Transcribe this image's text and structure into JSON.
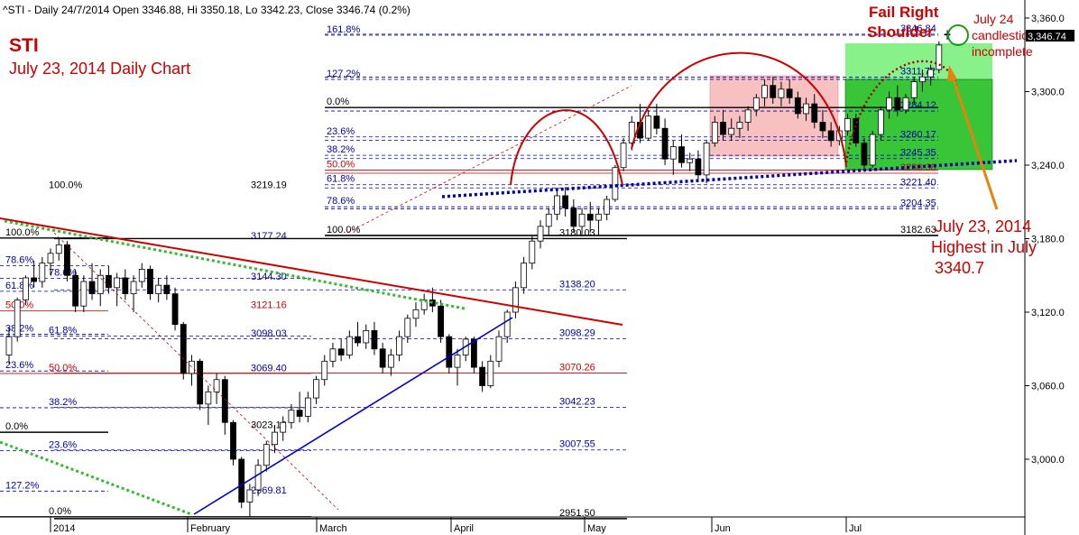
{
  "window": {
    "header_text": "^STI - Daily 24/7/2014 Open 3346.88, Hi 3350.18, Lo 3342.23, Close 3346.74 (0.2%)"
  },
  "annotations": {
    "title": "STI",
    "subtitle": "July 23, 2014 Daily Chart",
    "fail_right_line1": "Fail Right",
    "fail_right_line2": "Shoulder",
    "july24_line1": "July 24",
    "july24_line2": "candlestick",
    "july24_line3": "incomplete",
    "highest_line1": "July 23, 2014",
    "highest_line2": "Highest in July",
    "highest_line3": "3340.7",
    "last_price_badge": "3,346.74"
  },
  "colors": {
    "bull_candle": "#ffffff",
    "bear_candle": "#000000",
    "trend_red": "#cc0000",
    "trend_blue": "#0000cc",
    "trend_green_dotted": "#33bb33",
    "neckline_dotted": "#0000aa",
    "annotation_red": "#cc0000",
    "arrow_orange": "#e8820a",
    "box_pink": "#f6b7b7",
    "box_lightgreen": "#7cf07c",
    "box_green": "#2ec42e"
  },
  "chart_data": {
    "type": "candlestick",
    "title": "STI",
    "subtitle": "July 23, 2014 Daily Chart",
    "ylim": [
      2950,
      3370
    ],
    "y_ticks": [
      {
        "value": 3000,
        "label": "3,000.0"
      },
      {
        "value": 3060,
        "label": "3,060.0"
      },
      {
        "value": 3120,
        "label": "3,120.0"
      },
      {
        "value": 3180,
        "label": "3,180.0"
      },
      {
        "value": 3240,
        "label": "3,240.0"
      },
      {
        "value": 3300,
        "label": "3,300.0"
      },
      {
        "value": 3360,
        "label": "3,360.0"
      }
    ],
    "x_ticks": [
      "2014",
      "February",
      "March",
      "April",
      "May",
      "Jun",
      "Jul"
    ],
    "candles": [
      {
        "o": 3085,
        "h": 3108,
        "l": 3078,
        "c": 3100
      },
      {
        "o": 3100,
        "h": 3132,
        "l": 3096,
        "c": 3130
      },
      {
        "o": 3130,
        "h": 3150,
        "l": 3126,
        "c": 3148
      },
      {
        "o": 3148,
        "h": 3162,
        "l": 3140,
        "c": 3145
      },
      {
        "o": 3145,
        "h": 3165,
        "l": 3140,
        "c": 3160
      },
      {
        "o": 3160,
        "h": 3172,
        "l": 3150,
        "c": 3168
      },
      {
        "o": 3168,
        "h": 3180,
        "l": 3162,
        "c": 3175
      },
      {
        "o": 3175,
        "h": 3178,
        "l": 3145,
        "c": 3150
      },
      {
        "o": 3150,
        "h": 3155,
        "l": 3120,
        "c": 3125
      },
      {
        "o": 3125,
        "h": 3150,
        "l": 3120,
        "c": 3145
      },
      {
        "o": 3145,
        "h": 3160,
        "l": 3130,
        "c": 3135
      },
      {
        "o": 3135,
        "h": 3155,
        "l": 3125,
        "c": 3150
      },
      {
        "o": 3150,
        "h": 3158,
        "l": 3135,
        "c": 3140
      },
      {
        "o": 3140,
        "h": 3152,
        "l": 3125,
        "c": 3148
      },
      {
        "o": 3148,
        "h": 3155,
        "l": 3130,
        "c": 3135
      },
      {
        "o": 3135,
        "h": 3150,
        "l": 3120,
        "c": 3145
      },
      {
        "o": 3145,
        "h": 3160,
        "l": 3140,
        "c": 3155
      },
      {
        "o": 3155,
        "h": 3158,
        "l": 3130,
        "c": 3135
      },
      {
        "o": 3135,
        "h": 3148,
        "l": 3128,
        "c": 3142
      },
      {
        "o": 3142,
        "h": 3150,
        "l": 3130,
        "c": 3135
      },
      {
        "o": 3135,
        "h": 3140,
        "l": 3105,
        "c": 3110
      },
      {
        "o": 3110,
        "h": 3112,
        "l": 3065,
        "c": 3070
      },
      {
        "o": 3070,
        "h": 3085,
        "l": 3060,
        "c": 3080
      },
      {
        "o": 3080,
        "h": 3082,
        "l": 3040,
        "c": 3045
      },
      {
        "o": 3045,
        "h": 3060,
        "l": 3028,
        "c": 3055
      },
      {
        "o": 3055,
        "h": 3070,
        "l": 3045,
        "c": 3065
      },
      {
        "o": 3065,
        "h": 3068,
        "l": 3020,
        "c": 3030
      },
      {
        "o": 3030,
        "h": 3032,
        "l": 2995,
        "c": 3000
      },
      {
        "o": 3000,
        "h": 3002,
        "l": 2960,
        "c": 2965
      },
      {
        "o": 2965,
        "h": 2980,
        "l": 2953,
        "c": 2975
      },
      {
        "o": 2975,
        "h": 3000,
        "l": 2970,
        "c": 2995
      },
      {
        "o": 2995,
        "h": 3015,
        "l": 2990,
        "c": 3012
      },
      {
        "o": 3012,
        "h": 3028,
        "l": 3005,
        "c": 3022
      },
      {
        "o": 3022,
        "h": 3035,
        "l": 3015,
        "c": 3030
      },
      {
        "o": 3030,
        "h": 3045,
        "l": 3025,
        "c": 3040
      },
      {
        "o": 3040,
        "h": 3055,
        "l": 3030,
        "c": 3035
      },
      {
        "o": 3035,
        "h": 3055,
        "l": 3030,
        "c": 3050
      },
      {
        "o": 3050,
        "h": 3068,
        "l": 3045,
        "c": 3065
      },
      {
        "o": 3065,
        "h": 3085,
        "l": 3060,
        "c": 3080
      },
      {
        "o": 3080,
        "h": 3095,
        "l": 3075,
        "c": 3090
      },
      {
        "o": 3090,
        "h": 3098,
        "l": 3080,
        "c": 3085
      },
      {
        "o": 3085,
        "h": 3105,
        "l": 3082,
        "c": 3100
      },
      {
        "o": 3100,
        "h": 3112,
        "l": 3092,
        "c": 3095
      },
      {
        "o": 3095,
        "h": 3110,
        "l": 3090,
        "c": 3105
      },
      {
        "o": 3105,
        "h": 3112,
        "l": 3085,
        "c": 3090
      },
      {
        "o": 3090,
        "h": 3095,
        "l": 3070,
        "c": 3075
      },
      {
        "o": 3075,
        "h": 3090,
        "l": 3068,
        "c": 3085
      },
      {
        "o": 3085,
        "h": 3105,
        "l": 3080,
        "c": 3100
      },
      {
        "o": 3100,
        "h": 3118,
        "l": 3095,
        "c": 3115
      },
      {
        "o": 3115,
        "h": 3128,
        "l": 3108,
        "c": 3122
      },
      {
        "o": 3122,
        "h": 3135,
        "l": 3118,
        "c": 3130
      },
      {
        "o": 3130,
        "h": 3140,
        "l": 3120,
        "c": 3125
      },
      {
        "o": 3125,
        "h": 3130,
        "l": 3095,
        "c": 3100
      },
      {
        "o": 3100,
        "h": 3102,
        "l": 3070,
        "c": 3075
      },
      {
        "o": 3075,
        "h": 3090,
        "l": 3060,
        "c": 3085
      },
      {
        "o": 3085,
        "h": 3100,
        "l": 3080,
        "c": 3098
      },
      {
        "o": 3098,
        "h": 3100,
        "l": 3070,
        "c": 3075
      },
      {
        "o": 3075,
        "h": 3080,
        "l": 3055,
        "c": 3060
      },
      {
        "o": 3060,
        "h": 3085,
        "l": 3058,
        "c": 3080
      },
      {
        "o": 3080,
        "h": 3105,
        "l": 3075,
        "c": 3100
      },
      {
        "o": 3100,
        "h": 3122,
        "l": 3095,
        "c": 3120
      },
      {
        "o": 3120,
        "h": 3145,
        "l": 3115,
        "c": 3140
      },
      {
        "o": 3140,
        "h": 3165,
        "l": 3135,
        "c": 3160
      },
      {
        "o": 3160,
        "h": 3182,
        "l": 3155,
        "c": 3178
      },
      {
        "o": 3178,
        "h": 3195,
        "l": 3172,
        "c": 3190
      },
      {
        "o": 3190,
        "h": 3205,
        "l": 3183,
        "c": 3200
      },
      {
        "o": 3200,
        "h": 3220,
        "l": 3195,
        "c": 3215
      },
      {
        "o": 3215,
        "h": 3222,
        "l": 3198,
        "c": 3205
      },
      {
        "o": 3205,
        "h": 3212,
        "l": 3185,
        "c": 3190
      },
      {
        "o": 3190,
        "h": 3205,
        "l": 3182,
        "c": 3200
      },
      {
        "o": 3200,
        "h": 3210,
        "l": 3185,
        "c": 3195
      },
      {
        "o": 3195,
        "h": 3205,
        "l": 3183,
        "c": 3200
      },
      {
        "o": 3200,
        "h": 3215,
        "l": 3195,
        "c": 3212
      },
      {
        "o": 3212,
        "h": 3240,
        "l": 3210,
        "c": 3238
      },
      {
        "o": 3238,
        "h": 3262,
        "l": 3235,
        "c": 3258
      },
      {
        "o": 3258,
        "h": 3280,
        "l": 3252,
        "c": 3275
      },
      {
        "o": 3275,
        "h": 3290,
        "l": 3258,
        "c": 3262
      },
      {
        "o": 3262,
        "h": 3285,
        "l": 3260,
        "c": 3280
      },
      {
        "o": 3280,
        "h": 3290,
        "l": 3265,
        "c": 3270
      },
      {
        "o": 3270,
        "h": 3278,
        "l": 3240,
        "c": 3245
      },
      {
        "o": 3245,
        "h": 3260,
        "l": 3232,
        "c": 3255
      },
      {
        "o": 3255,
        "h": 3265,
        "l": 3238,
        "c": 3242
      },
      {
        "o": 3242,
        "h": 3250,
        "l": 3235,
        "c": 3245
      },
      {
        "o": 3245,
        "h": 3252,
        "l": 3228,
        "c": 3232
      },
      {
        "o": 3232,
        "h": 3260,
        "l": 3225,
        "c": 3258
      },
      {
        "o": 3258,
        "h": 3280,
        "l": 3255,
        "c": 3275
      },
      {
        "o": 3275,
        "h": 3285,
        "l": 3260,
        "c": 3265
      },
      {
        "o": 3265,
        "h": 3278,
        "l": 3260,
        "c": 3270
      },
      {
        "o": 3270,
        "h": 3280,
        "l": 3262,
        "c": 3275
      },
      {
        "o": 3275,
        "h": 3288,
        "l": 3268,
        "c": 3285
      },
      {
        "o": 3285,
        "h": 3298,
        "l": 3280,
        "c": 3295
      },
      {
        "o": 3295,
        "h": 3310,
        "l": 3288,
        "c": 3305
      },
      {
        "o": 3305,
        "h": 3312,
        "l": 3290,
        "c": 3295
      },
      {
        "o": 3295,
        "h": 3308,
        "l": 3288,
        "c": 3302
      },
      {
        "o": 3302,
        "h": 3310,
        "l": 3290,
        "c": 3295
      },
      {
        "o": 3295,
        "h": 3300,
        "l": 3278,
        "c": 3282
      },
      {
        "o": 3282,
        "h": 3295,
        "l": 3276,
        "c": 3290
      },
      {
        "o": 3290,
        "h": 3298,
        "l": 3270,
        "c": 3275
      },
      {
        "o": 3275,
        "h": 3285,
        "l": 3262,
        "c": 3268
      },
      {
        "o": 3268,
        "h": 3275,
        "l": 3255,
        "c": 3260
      },
      {
        "o": 3260,
        "h": 3272,
        "l": 3256,
        "c": 3268
      },
      {
        "o": 3268,
        "h": 3282,
        "l": 3264,
        "c": 3278
      },
      {
        "o": 3278,
        "h": 3282,
        "l": 3255,
        "c": 3258
      },
      {
        "o": 3258,
        "h": 3262,
        "l": 3236,
        "c": 3240
      },
      {
        "o": 3240,
        "h": 3268,
        "l": 3238,
        "c": 3265
      },
      {
        "o": 3265,
        "h": 3288,
        "l": 3260,
        "c": 3285
      },
      {
        "o": 3285,
        "h": 3300,
        "l": 3278,
        "c": 3295
      },
      {
        "o": 3295,
        "h": 3305,
        "l": 3280,
        "c": 3285
      },
      {
        "o": 3285,
        "h": 3298,
        "l": 3282,
        "c": 3295
      },
      {
        "o": 3295,
        "h": 3312,
        "l": 3290,
        "c": 3308
      },
      {
        "o": 3308,
        "h": 3318,
        "l": 3300,
        "c": 3312
      },
      {
        "o": 3312,
        "h": 3322,
        "l": 3305,
        "c": 3318
      },
      {
        "o": 3318,
        "h": 3341,
        "l": 3315,
        "c": 3338
      },
      {
        "o": 3346.88,
        "h": 3350.18,
        "l": 3342.23,
        "c": 3346.74
      }
    ],
    "fib_levels": [
      {
        "set": "A",
        "label": "100.0%",
        "value": 3180.5,
        "price_text": ""
      },
      {
        "set": "A",
        "label": "78.6%",
        "value": 3158,
        "price_text": ""
      },
      {
        "set": "A",
        "label": "61.8%",
        "value": 3137,
        "price_text": ""
      },
      {
        "set": "A",
        "label": "50.0%",
        "value": 3121,
        "price_text": "",
        "red": true
      },
      {
        "set": "A",
        "label": "38.2%",
        "value": 3102,
        "price_text": ""
      },
      {
        "set": "A",
        "label": "23.6%",
        "value": 3072,
        "price_text": ""
      },
      {
        "set": "A",
        "label": "0.0%",
        "value": 3022,
        "price_text": ""
      },
      {
        "set": "A",
        "label": "127.2%",
        "value": 2974,
        "price_text": ""
      },
      {
        "set": "B",
        "label": "100.0%",
        "value": 3219.19,
        "price_text": "3219.19"
      },
      {
        "set": "B",
        "label": "",
        "value": 3177.24,
        "price_text": "3177.24"
      },
      {
        "set": "B",
        "label": "78.6%",
        "value": 3147.5,
        "price_text": ""
      },
      {
        "set": "B",
        "label": "",
        "value": 3144.3,
        "price_text": "3144.30"
      },
      {
        "set": "B",
        "label": "",
        "value": 3121.16,
        "price_text": "3121.16",
        "red": true
      },
      {
        "set": "B",
        "label": "61.8%",
        "value": 3100.5,
        "price_text": ""
      },
      {
        "set": "B",
        "label": "",
        "value": 3098.03,
        "price_text": "3098.03"
      },
      {
        "set": "B",
        "label": "50.0%",
        "value": 3070,
        "price_text": "",
        "red": true
      },
      {
        "set": "B",
        "label": "",
        "value": 3069.4,
        "price_text": "3069.40"
      },
      {
        "set": "B",
        "label": "38.2%",
        "value": 3042,
        "price_text": ""
      },
      {
        "set": "B",
        "label": "",
        "value": 3023.13,
        "price_text": "3023.13"
      },
      {
        "set": "B",
        "label": "23.6%",
        "value": 3007,
        "price_text": ""
      },
      {
        "set": "B",
        "label": "",
        "value": 2969.81,
        "price_text": "2969.81"
      },
      {
        "set": "B",
        "label": "0.0%",
        "value": 2953,
        "price_text": ""
      },
      {
        "set": "C",
        "label": "",
        "value": 3138.2,
        "price_text": "3138.20"
      },
      {
        "set": "C",
        "label": "",
        "value": 3098.29,
        "price_text": "3098.29"
      },
      {
        "set": "C",
        "label": "",
        "value": 3070.26,
        "price_text": "3070.26",
        "red": true
      },
      {
        "set": "C",
        "label": "",
        "value": 3042.23,
        "price_text": "3042.23"
      },
      {
        "set": "C",
        "label": "",
        "value": 3007.55,
        "price_text": "3007.55"
      },
      {
        "set": "C",
        "label": "",
        "value": 2951.5,
        "price_text": "2951.50"
      },
      {
        "set": "C",
        "label": "",
        "value": 3180.03,
        "price_text": "3180.03"
      },
      {
        "set": "D",
        "label": "161.8%",
        "value": 3346,
        "price_text": ""
      },
      {
        "set": "D",
        "label": "127.2%",
        "value": 3310,
        "price_text": ""
      },
      {
        "set": "D",
        "label": "0.0%",
        "value": 3287,
        "price_text": ""
      },
      {
        "set": "D",
        "label": "23.6%",
        "value": 3263,
        "price_text": ""
      },
      {
        "set": "D",
        "label": "38.2%",
        "value": 3248,
        "price_text": ""
      },
      {
        "set": "D",
        "label": "50.0%",
        "value": 3236,
        "price_text": "",
        "red": true
      },
      {
        "set": "D",
        "label": "61.8%",
        "value": 3224,
        "price_text": ""
      },
      {
        "set": "D",
        "label": "78.6%",
        "value": 3206,
        "price_text": ""
      },
      {
        "set": "D",
        "label": "100.0%",
        "value": 3182.5,
        "price_text": ""
      },
      {
        "set": "E",
        "label": "",
        "value": 3346.84,
        "price_text": "3346.84"
      },
      {
        "set": "E",
        "label": "",
        "value": 3311.72,
        "price_text": "3311.72"
      },
      {
        "set": "E",
        "label": "",
        "value": 3284.12,
        "price_text": "3284.12"
      },
      {
        "set": "E",
        "label": "",
        "value": 3260.17,
        "price_text": "3260.17"
      },
      {
        "set": "E",
        "label": "",
        "value": 3245.35,
        "price_text": "3245.35"
      },
      {
        "set": "E",
        "label": "",
        "value": 3233.38,
        "price_text": "3233.38",
        "red": true
      },
      {
        "set": "E",
        "label": "",
        "value": 3221.4,
        "price_text": "3221.40"
      },
      {
        "set": "E",
        "label": "",
        "value": 3204.35,
        "price_text": "3204.35"
      },
      {
        "set": "E",
        "label": "",
        "value": 3182.63,
        "price_text": "3182.63"
      }
    ],
    "grid": false,
    "legend": "none"
  }
}
